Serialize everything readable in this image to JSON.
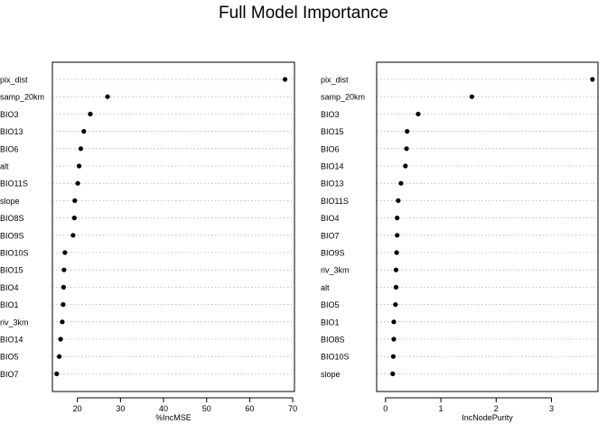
{
  "title": "Full Model Importance",
  "chart_data": [
    {
      "type": "dotchart",
      "xlabel": "%IncMSE",
      "xlim": [
        14.2,
        70.4
      ],
      "xticks": [
        20,
        30,
        40,
        50,
        60,
        70
      ],
      "grid": "dotted horizontal lines per variable",
      "categories": [
        "pix_dist",
        "samp_20km",
        "BIO3",
        "BIO13",
        "BIO6",
        "alt",
        "BIO11S",
        "slope",
        "BIO8S",
        "BIO9S",
        "BIO10S",
        "BIO15",
        "BIO4",
        "BIO1",
        "riv_3km",
        "BIO14",
        "BIO5",
        "BIO7"
      ],
      "values": [
        68.2,
        27.0,
        23.0,
        21.5,
        20.8,
        20.4,
        20.1,
        19.4,
        19.3,
        19.0,
        17.1,
        16.9,
        16.8,
        16.7,
        16.5,
        16.1,
        15.8,
        15.2
      ]
    },
    {
      "type": "dotchart",
      "xlabel": "IncNodePurity",
      "xlim": [
        -0.16,
        3.84
      ],
      "xticks": [
        0,
        1,
        2,
        3
      ],
      "grid": "dotted horizontal lines per variable",
      "categories": [
        "pix_dist",
        "samp_20km",
        "BIO3",
        "BIO15",
        "BIO6",
        "BIO14",
        "BIO13",
        "BIO11S",
        "BIO4",
        "BIO7",
        "BIO9S",
        "riv_3km",
        "alt",
        "BIO5",
        "BIO1",
        "BIO8S",
        "BIO10S",
        "slope"
      ],
      "values": [
        3.74,
        1.56,
        0.59,
        0.39,
        0.38,
        0.36,
        0.28,
        0.23,
        0.21,
        0.21,
        0.2,
        0.19,
        0.19,
        0.18,
        0.15,
        0.15,
        0.14,
        0.13
      ]
    }
  ]
}
